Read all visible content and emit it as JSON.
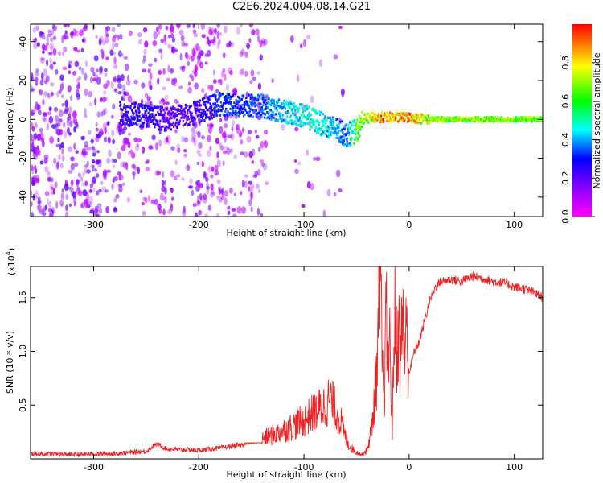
{
  "title": "C2E6.2024.004.08.14.G21",
  "chart_data": [
    {
      "type": "heatmap",
      "title": "C2E6.2024.004.08.14.G21",
      "xlabel": "Height of straight line (km)",
      "ylabel": "Frequency (Hz)",
      "xlim": [
        -360,
        127
      ],
      "ylim": [
        -50,
        49
      ],
      "xticks": [
        -300,
        -200,
        -100,
        0,
        100
      ],
      "yticks": [
        -40,
        -20,
        0,
        20,
        40
      ],
      "colorbar": {
        "label": "Normalized spectral amplitude",
        "range": [
          0.0,
          1.0
        ],
        "ticks": [
          0.0,
          0.2,
          0.4,
          0.6,
          0.8
        ],
        "colormap": [
          "#ff00ff",
          "#8000ff",
          "#0000ff",
          "#00ffff",
          "#00ff00",
          "#ffff00",
          "#ff0000"
        ]
      },
      "signal_trace": [
        {
          "x": -275,
          "y": 3,
          "amp": 0.25
        },
        {
          "x": -250,
          "y": 2,
          "amp": 0.3
        },
        {
          "x": -230,
          "y": 0,
          "amp": 0.22
        },
        {
          "x": -200,
          "y": 4,
          "amp": 0.25
        },
        {
          "x": -180,
          "y": 8,
          "amp": 0.35
        },
        {
          "x": -160,
          "y": 7,
          "amp": 0.35
        },
        {
          "x": -140,
          "y": 7,
          "amp": 0.38
        },
        {
          "x": -120,
          "y": 4,
          "amp": 0.45
        },
        {
          "x": -100,
          "y": 2,
          "amp": 0.5
        },
        {
          "x": -85,
          "y": -2,
          "amp": 0.5
        },
        {
          "x": -70,
          "y": -5,
          "amp": 0.42
        },
        {
          "x": -60,
          "y": -8,
          "amp": 0.38
        },
        {
          "x": -50,
          "y": -6,
          "amp": 0.65
        },
        {
          "x": -43,
          "y": 0,
          "amp": 0.75
        },
        {
          "x": -35,
          "y": 1,
          "amp": 0.8
        },
        {
          "x": -25,
          "y": 1,
          "amp": 0.95
        },
        {
          "x": -10,
          "y": 1,
          "amp": 0.9
        },
        {
          "x": 0,
          "y": 1,
          "amp": 0.9
        },
        {
          "x": 20,
          "y": 0,
          "amp": 0.75
        },
        {
          "x": 60,
          "y": 0,
          "amp": 0.72
        },
        {
          "x": 100,
          "y": 0,
          "amp": 0.72
        },
        {
          "x": 127,
          "y": 0,
          "amp": 0.7
        }
      ]
    },
    {
      "type": "line",
      "xlabel": "Height of straight line (km)",
      "ylabel": "SNR (10 * v/v)",
      "ylabel_multiplier": "(x10^4)",
      "xlim": [
        -360,
        127
      ],
      "ylim": [
        0,
        17900
      ],
      "xticks": [
        -300,
        -200,
        -100,
        0,
        100
      ],
      "yticks": [
        5000,
        10000,
        15000
      ],
      "ytick_labels": [
        "0.5",
        "1.0",
        "1.5"
      ],
      "series": [
        {
          "color": "#ee2222",
          "x": [
            -360,
            -320,
            -280,
            -250,
            -240,
            -230,
            -200,
            -180,
            -160,
            -140,
            -130,
            -120,
            -110,
            -100,
            -90,
            -80,
            -75,
            -70,
            -65,
            -60,
            -55,
            -50,
            -45,
            -40,
            -35,
            -32,
            -30,
            -28,
            -26,
            -24,
            -22,
            -20,
            -18,
            -16,
            -14,
            -12,
            -10,
            -8,
            -6,
            -4,
            -2,
            0,
            5,
            10,
            15,
            20,
            25,
            30,
            40,
            50,
            60,
            70,
            80,
            90,
            100,
            110,
            120,
            127
          ],
          "y": [
            500,
            400,
            500,
            700,
            1400,
            900,
            800,
            1000,
            1300,
            1800,
            2200,
            2600,
            3100,
            3600,
            4300,
            5000,
            5600,
            4500,
            3500,
            1800,
            1000,
            600,
            400,
            800,
            3200,
            7000,
            9000,
            16000,
            11000,
            4500,
            13000,
            9000,
            10500,
            2500,
            14000,
            10500,
            12000,
            9000,
            14000,
            10000,
            12000,
            8000,
            10000,
            11000,
            13000,
            14800,
            16000,
            16500,
            16700,
            16500,
            17000,
            16800,
            16500,
            16400,
            16000,
            15800,
            15400,
            15000
          ]
        }
      ]
    }
  ]
}
